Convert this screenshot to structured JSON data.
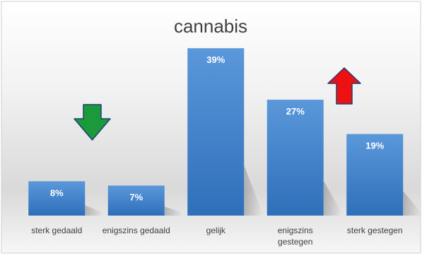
{
  "chart_data": {
    "type": "bar",
    "title": "cannabis",
    "categories": [
      "sterk gedaald",
      "enigszins gedaald",
      "gelijk",
      "enigszins gestegen",
      "sterk gestegen"
    ],
    "category_lines": [
      [
        "sterk gedaald"
      ],
      [
        "enigszins gedaald"
      ],
      [
        "gelijk"
      ],
      [
        "enigszins",
        "gestegen"
      ],
      [
        "sterk gestegen"
      ]
    ],
    "values": [
      8,
      7,
      39,
      27,
      19
    ],
    "data_labels": [
      "8%",
      "7%",
      "39%",
      "27%",
      "19%"
    ],
    "unit": "%",
    "ylim": [
      0,
      42
    ],
    "grid": false,
    "legend": "none",
    "colors": {
      "bar_top": "#5a98da",
      "bar_bottom": "#2f6fba",
      "data_label": "#ffffff",
      "axis_text": "#404040",
      "title": "#404040",
      "down_arrow": "#1a9a3a",
      "up_arrow": "#ee1111",
      "arrow_outline": "#1f3f74"
    },
    "annotations": [
      {
        "icon": "down-arrow-icon",
        "meaning": "decrease",
        "over": "gedaald"
      },
      {
        "icon": "up-arrow-icon",
        "meaning": "increase",
        "over": "gestegen"
      }
    ]
  }
}
